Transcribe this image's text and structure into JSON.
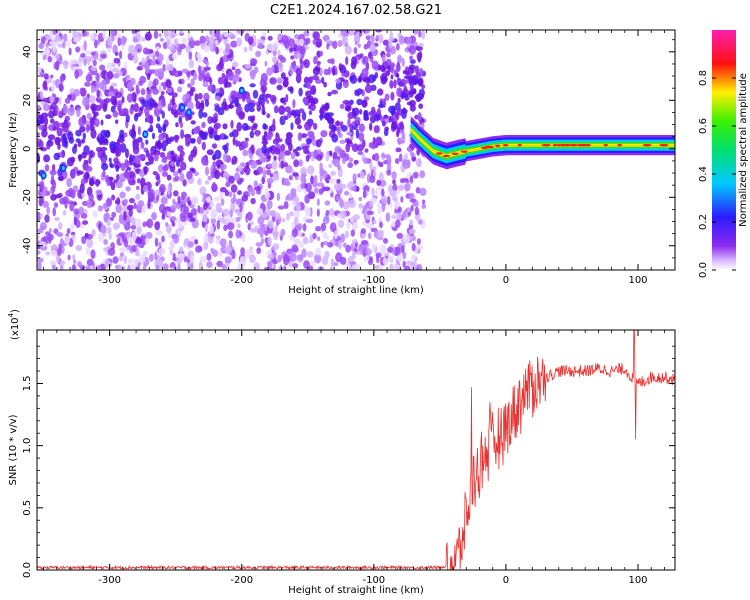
{
  "title": "C2E1.2024.167.02.58.G21",
  "chart_data": [
    {
      "type": "heatmap",
      "xlabel": "Height of straight line (km)",
      "ylabel": "Frequency (Hz)",
      "xlim": [
        -355,
        128
      ],
      "ylim": [
        -50,
        49
      ],
      "x_ticks": [
        -300,
        -200,
        -100,
        0,
        100
      ],
      "x_tick_labels": [
        "-300",
        "-200",
        "-100",
        "0",
        "100"
      ],
      "y_ticks": [
        -40,
        -20,
        0,
        20,
        40
      ],
      "y_tick_labels": [
        "-40",
        "-20",
        "0",
        "20",
        "40"
      ],
      "colorbar": {
        "label": "Normalized spectral amplitude",
        "range": [
          0,
          1
        ],
        "ticks": [
          0.0,
          0.2,
          0.4,
          0.6,
          0.8
        ],
        "tick_labels": [
          "0.0",
          "0.2",
          "0.4",
          "0.6",
          "0.8"
        ],
        "colormap": "rainbow (white → purple → blue → cyan → green → yellow → red → magenta)"
      },
      "noise_region_x": [
        -355,
        -62
      ],
      "signal_track": {
        "x": [
          -72,
          -65,
          -55,
          -45,
          -38,
          -30,
          -20,
          -10,
          0,
          20,
          50,
          100,
          128
        ],
        "y": [
          8,
          4,
          -1,
          -3,
          -2,
          -1,
          0,
          1,
          1.5,
          1.5,
          1.5,
          1.5,
          1.5
        ]
      }
    },
    {
      "type": "line",
      "xlabel": "Height of straight line (km)",
      "ylabel": "SNR (10 * v/v)",
      "y_multiplier_label": "(x10",
      "y_multiplier_exp": "4",
      "y_multiplier_close": ")",
      "xlim": [
        -355,
        128
      ],
      "ylim": [
        0,
        1.93
      ],
      "x_ticks": [
        -300,
        -200,
        -100,
        0,
        100
      ],
      "x_tick_labels": [
        "-300",
        "-200",
        "-100",
        "0",
        "100"
      ],
      "y_ticks": [
        0.0,
        0.5,
        1.0,
        1.5
      ],
      "y_tick_labels": [
        "0.0",
        "0.5",
        "1.0",
        "1.5"
      ],
      "color": "#e8312f",
      "series": [
        {
          "x": [
            -355,
            -300,
            -200,
            -100,
            -50,
            -40,
            -35,
            -30,
            -25,
            -20,
            -15,
            -10,
            -5,
            0,
            10,
            20,
            30,
            40,
            50,
            60,
            70,
            80,
            90,
            95,
            100,
            110,
            120,
            128
          ],
          "y": [
            0.02,
            0.02,
            0.02,
            0.02,
            0.02,
            0.05,
            0.15,
            0.4,
            0.7,
            0.85,
            0.95,
            1.0,
            1.1,
            1.15,
            1.35,
            1.5,
            1.55,
            1.6,
            1.6,
            1.6,
            1.62,
            1.6,
            1.62,
            1.55,
            1.5,
            1.55,
            1.55,
            1.53
          ]
        }
      ],
      "spikes": [
        {
          "x": -26,
          "y": 1.47
        },
        {
          "x": -12,
          "y": 1.35
        },
        {
          "x": 97,
          "y": 1.93
        },
        {
          "x": 98,
          "y": 1.05
        }
      ]
    }
  ]
}
